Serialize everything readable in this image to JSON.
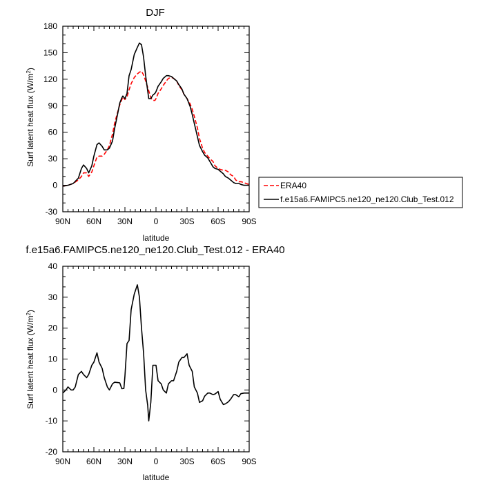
{
  "chart_data": [
    {
      "type": "line",
      "title": "DJF",
      "xlabel": "latitude",
      "ylabel": "Surf latent heat flux (W/m²)",
      "ylabel_main": "Surf latent heat flux (W/m",
      "ylabel_sup": "2",
      "ylabel_end": ")",
      "xlim": [
        90,
        -90
      ],
      "ylim": [
        -30,
        180
      ],
      "x_ticks": [
        90,
        60,
        30,
        0,
        -30,
        -60,
        -90
      ],
      "x_tick_labels": [
        "90N",
        "60N",
        "30N",
        "0",
        "30S",
        "60S",
        "90S"
      ],
      "y_ticks": [
        -30,
        0,
        30,
        60,
        90,
        120,
        150,
        180
      ],
      "y_tick_labels": [
        "-30",
        "0",
        "30",
        "60",
        "90",
        "120",
        "150",
        "180"
      ],
      "grid": false,
      "legend_position": "right",
      "series": [
        {
          "name": "ERA40",
          "color": "#ff0000",
          "dash": "dashed",
          "x": [
            90,
            85,
            80,
            75,
            72,
            70,
            67,
            65,
            62,
            60,
            57,
            55,
            52,
            50,
            47,
            45,
            42,
            40,
            37,
            35,
            33,
            32,
            30,
            28,
            26,
            24,
            21,
            18,
            16,
            14,
            12,
            10,
            7,
            5,
            3,
            1,
            0,
            -2,
            -5,
            -7,
            -10,
            -12,
            -15,
            -17,
            -20,
            -22,
            -25,
            -27,
            -30,
            -33,
            -35,
            -37,
            -40,
            -42,
            -45,
            -47,
            -50,
            -52,
            -55,
            -57,
            -60,
            -62,
            -65,
            -67,
            -70,
            -72,
            -75,
            -77,
            -80,
            -82,
            -85,
            -87,
            -90
          ],
          "y": [
            -1,
            0,
            2,
            6,
            10,
            14,
            14,
            10,
            15,
            22,
            32,
            33,
            33,
            35,
            40,
            45,
            58,
            70,
            83,
            91,
            97,
            100,
            97,
            100,
            108,
            115,
            122,
            126,
            128,
            129,
            125,
            118,
            107,
            99,
            96,
            96,
            98,
            104,
            109,
            113,
            118,
            121,
            122,
            121,
            118,
            113,
            108,
            103,
            98,
            92,
            86,
            78,
            65,
            53,
            42,
            37,
            33,
            30,
            27,
            22,
            19,
            18,
            17,
            17,
            15,
            12,
            10,
            6,
            4,
            4,
            3,
            2,
            1
          ]
        },
        {
          "name": "f.e15a6.FAMIPC5.ne120_ne120.Club_Test.012",
          "color": "#000000",
          "dash": "solid",
          "x": [
            90,
            85,
            80,
            75,
            72,
            70,
            67,
            65,
            62,
            60,
            57,
            55,
            52,
            50,
            47,
            45,
            42,
            40,
            37,
            35,
            33,
            32,
            30,
            28,
            26,
            24,
            21,
            18,
            16,
            14,
            12,
            10,
            7,
            5,
            3,
            1,
            0,
            -2,
            -5,
            -7,
            -10,
            -12,
            -15,
            -17,
            -20,
            -22,
            -25,
            -27,
            -30,
            -33,
            -35,
            -37,
            -40,
            -42,
            -45,
            -47,
            -50,
            -52,
            -55,
            -57,
            -60,
            -62,
            -65,
            -67,
            -70,
            -72,
            -75,
            -77,
            -80,
            -82,
            -85,
            -87,
            -90
          ],
          "y": [
            -1,
            0,
            2,
            8,
            19,
            23,
            19,
            14,
            22,
            33,
            46,
            48,
            44,
            40,
            40,
            42,
            50,
            64,
            81,
            93,
            99,
            101,
            98,
            104,
            124,
            131,
            148,
            156,
            161,
            159,
            145,
            124,
            98,
            98,
            102,
            104,
            106,
            112,
            117,
            121,
            124,
            124,
            123,
            121,
            118,
            114,
            109,
            103,
            98,
            89,
            80,
            70,
            55,
            45,
            38,
            34,
            31,
            27,
            21,
            19,
            18,
            16,
            13,
            10,
            8,
            6,
            3,
            2,
            2,
            1,
            0,
            0,
            0
          ]
        }
      ]
    },
    {
      "type": "line",
      "title": "f.e15a6.FAMIPC5.ne120_ne120.Club_Test.012 - ERA40",
      "xlabel": "latitude",
      "ylabel": "Surf latent heat flux (W/m²)",
      "ylabel_main": "Surf latent heat flux (W/m",
      "ylabel_sup": "2",
      "ylabel_end": ")",
      "xlim": [
        90,
        -90
      ],
      "ylim": [
        -20,
        40
      ],
      "x_ticks": [
        90,
        60,
        30,
        0,
        -30,
        -60,
        -90
      ],
      "x_tick_labels": [
        "90N",
        "60N",
        "30N",
        "0",
        "30S",
        "60S",
        "90S"
      ],
      "y_ticks": [
        -20,
        -10,
        0,
        10,
        20,
        30,
        40
      ],
      "y_tick_labels": [
        "-20",
        "-10",
        "0",
        "10",
        "20",
        "30",
        "40"
      ],
      "grid": false,
      "series": [
        {
          "name": "f.e15a6.FAMIPC5.ne120_ne120.Club_Test.012 - ERA40",
          "color": "#000000",
          "dash": "solid",
          "x": [
            90,
            87,
            85,
            82,
            80,
            78,
            75,
            72,
            70,
            67,
            65,
            62,
            60,
            57,
            55,
            52,
            50,
            47,
            45,
            42,
            40,
            37,
            35,
            33,
            31,
            30,
            28,
            26,
            24,
            21,
            18,
            16,
            14,
            12,
            10,
            8,
            7,
            5,
            3,
            1,
            0,
            -2,
            -5,
            -7,
            -10,
            -12,
            -15,
            -17,
            -20,
            -22,
            -25,
            -27,
            -30,
            -32,
            -35,
            -37,
            -40,
            -42,
            -45,
            -47,
            -50,
            -52,
            -55,
            -57,
            -60,
            -62,
            -65,
            -67,
            -70,
            -72,
            -75,
            -77,
            -80,
            -82,
            -85,
            -87,
            -90
          ],
          "y": [
            -1,
            0,
            1,
            0,
            0,
            1,
            5,
            6,
            5,
            4,
            5,
            8,
            9,
            12,
            9,
            7,
            4,
            1,
            0,
            2,
            2.5,
            2.4,
            2.3,
            0.4,
            0.5,
            4.5,
            15,
            16,
            26,
            31,
            34,
            30,
            20,
            12,
            0,
            -5,
            -10,
            -4,
            8,
            8,
            8,
            3,
            2,
            0,
            -1,
            2,
            3,
            3,
            6,
            9,
            10.5,
            10.5,
            11.7,
            8,
            6,
            1,
            -1,
            -4,
            -3.5,
            -2,
            -1,
            -1,
            -1.5,
            -1.3,
            -0.5,
            -3,
            -4.7,
            -4.5,
            -3.8,
            -3,
            -1.5,
            -1.5,
            -2.2,
            -1.2,
            -1,
            -1,
            -1
          ]
        }
      ]
    }
  ]
}
